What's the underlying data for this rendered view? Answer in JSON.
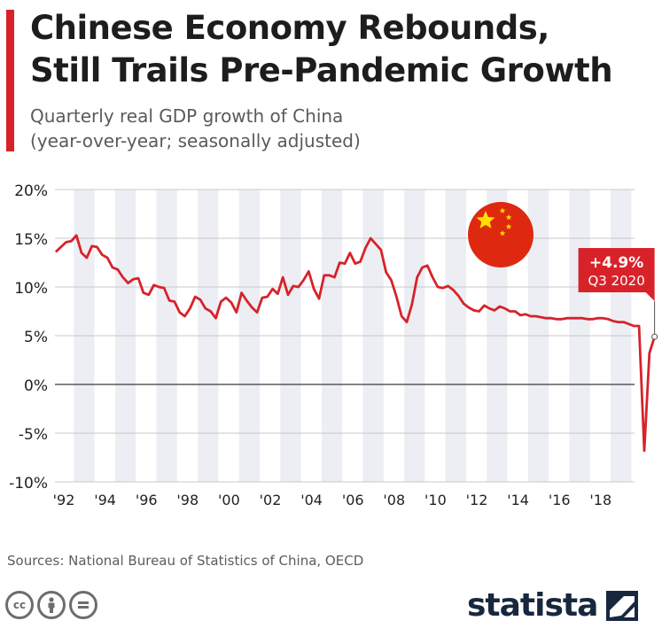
{
  "header": {
    "title_line1": "Chinese Economy Rebounds,",
    "title_line2": "Still Trails Pre-Pandemic Growth",
    "subtitle_line1": "Quarterly real GDP growth of China",
    "subtitle_line2": "(year-over-year; seasonally adjusted)"
  },
  "footer": {
    "source": "Sources: National Bureau of Statistics of China, OECD",
    "brand": "statista",
    "license_icons": [
      "creative-commons-icon",
      "attribution-icon",
      "no-derivatives-icon"
    ]
  },
  "colors": {
    "accent": "#d8222a",
    "line": "#d8222a",
    "band": "#eceef4",
    "text": "#1d1d1d"
  },
  "chart_data": {
    "type": "line",
    "title": "Chinese Economy Rebounds, Still Trails Pre-Pandemic Growth",
    "subtitle": "Quarterly real GDP growth of China (year-over-year; seasonally adjusted)",
    "xlabel": "",
    "ylabel": "",
    "ylim": [
      -10,
      20
    ],
    "y_ticks": [
      20,
      15,
      10,
      5,
      0,
      -5,
      -10
    ],
    "y_tick_labels": [
      "20%",
      "15%",
      "10%",
      "5%",
      "0%",
      "-5%",
      "-10%"
    ],
    "x_tick_years": [
      1992,
      1994,
      1996,
      1998,
      2000,
      2002,
      2004,
      2006,
      2008,
      2010,
      2012,
      2014,
      2016,
      2018
    ],
    "x_tick_labels": [
      "'92",
      "'94",
      "'96",
      "'98",
      "'00",
      "'02",
      "'04",
      "'06",
      "'08",
      "'10",
      "'12",
      "'14",
      "'16",
      "'18"
    ],
    "grid": true,
    "alternating_year_bands": true,
    "legend": "none",
    "start_year": 1992,
    "series": [
      {
        "values": [
          13.6,
          14.1,
          14.6,
          14.7,
          15.3,
          13.5,
          13.0,
          14.2,
          14.1,
          13.3,
          13.0,
          12.0,
          11.8,
          11.0,
          10.4,
          10.8,
          10.9,
          9.4,
          9.2,
          10.2,
          10.0,
          9.9,
          8.6,
          8.5,
          7.4,
          7.0,
          7.8,
          9.0,
          8.7,
          7.8,
          7.5,
          6.8,
          8.5,
          8.9,
          8.4,
          7.4,
          9.4,
          8.6,
          7.9,
          7.4,
          8.9,
          9.0,
          9.8,
          9.3,
          11.0,
          9.2,
          10.1,
          10.0,
          10.7,
          11.6,
          9.8,
          8.8,
          11.2,
          11.2,
          11.0,
          12.5,
          12.4,
          13.5,
          12.4,
          12.6,
          14.0,
          15.0,
          14.4,
          13.8,
          11.5,
          10.7,
          9.0,
          7.0,
          6.4,
          8.2,
          11.0,
          12.0,
          12.2,
          11.0,
          10.0,
          9.9,
          10.1,
          9.7,
          9.1,
          8.3,
          7.9,
          7.6,
          7.5,
          8.1,
          7.8,
          7.6,
          8.0,
          7.8,
          7.5,
          7.5,
          7.1,
          7.2,
          7.0,
          7.0,
          6.9,
          6.8,
          6.8,
          6.7,
          6.7,
          6.8,
          6.8,
          6.8,
          6.8,
          6.7,
          6.7,
          6.8,
          6.8,
          6.7,
          6.5,
          6.4,
          6.4,
          6.2,
          6.0,
          6.0,
          -6.8,
          3.2,
          4.9
        ]
      }
    ],
    "annotation": {
      "value_label": "+4.9%",
      "period_label": "Q3 2020",
      "value": 4.9
    }
  }
}
